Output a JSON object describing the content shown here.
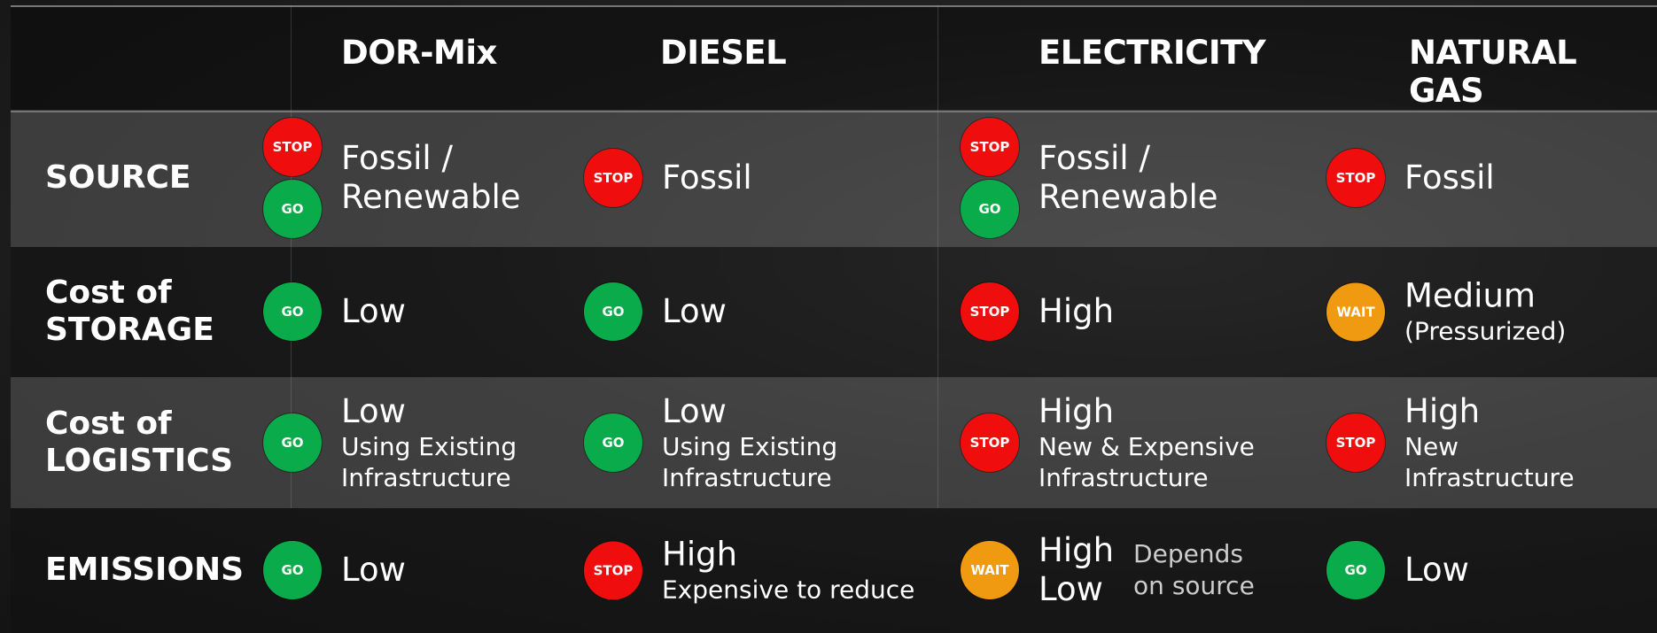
{
  "columns": [
    "DOR-Mix",
    "DIESEL",
    "ELECTRICITY",
    "NATURAL GAS"
  ],
  "rows": [
    {
      "label": [
        "SOURCE"
      ],
      "cells": [
        {
          "badges": [
            "STOP",
            "GO"
          ],
          "main": [
            "Fossil /",
            "Renewable"
          ]
        },
        {
          "badges": [
            "STOP"
          ],
          "main": [
            "Fossil"
          ]
        },
        {
          "badges": [
            "STOP",
            "GO"
          ],
          "main": [
            "Fossil /",
            "Renewable"
          ]
        },
        {
          "badges": [
            "STOP"
          ],
          "main": [
            "Fossil"
          ]
        }
      ]
    },
    {
      "label": [
        "Cost of",
        "STORAGE"
      ],
      "cells": [
        {
          "badges": [
            "GO"
          ],
          "main": [
            "Low"
          ]
        },
        {
          "badges": [
            "GO"
          ],
          "main": [
            "Low"
          ]
        },
        {
          "badges": [
            "STOP"
          ],
          "main": [
            "High"
          ]
        },
        {
          "badges": [
            "WAIT"
          ],
          "main": [
            "Medium"
          ],
          "sub": [
            "(Pressurized)"
          ]
        }
      ]
    },
    {
      "label": [
        "Cost of",
        "LOGISTICS"
      ],
      "cells": [
        {
          "badges": [
            "GO"
          ],
          "main": [
            "Low"
          ],
          "sub": [
            "Using Existing",
            "Infrastructure"
          ]
        },
        {
          "badges": [
            "GO"
          ],
          "main": [
            "Low"
          ],
          "sub": [
            "Using Existing",
            "Infrastructure"
          ]
        },
        {
          "badges": [
            "STOP"
          ],
          "main": [
            "High"
          ],
          "sub": [
            "New & Expensive",
            "Infrastructure"
          ]
        },
        {
          "badges": [
            "STOP"
          ],
          "main": [
            "High"
          ],
          "sub": [
            "New",
            "Infrastructure"
          ]
        }
      ]
    },
    {
      "label": [
        "EMISSIONS"
      ],
      "cells": [
        {
          "badges": [
            "GO"
          ],
          "main": [
            "Low"
          ]
        },
        {
          "badges": [
            "STOP"
          ],
          "main": [
            "High"
          ],
          "sub": [
            "Expensive to reduce"
          ]
        },
        {
          "badges": [
            "WAIT"
          ],
          "main": [
            "High",
            "Low"
          ],
          "note": [
            "Depends",
            "on source"
          ]
        },
        {
          "badges": [
            "GO"
          ],
          "main": [
            "Low"
          ]
        }
      ]
    }
  ]
}
